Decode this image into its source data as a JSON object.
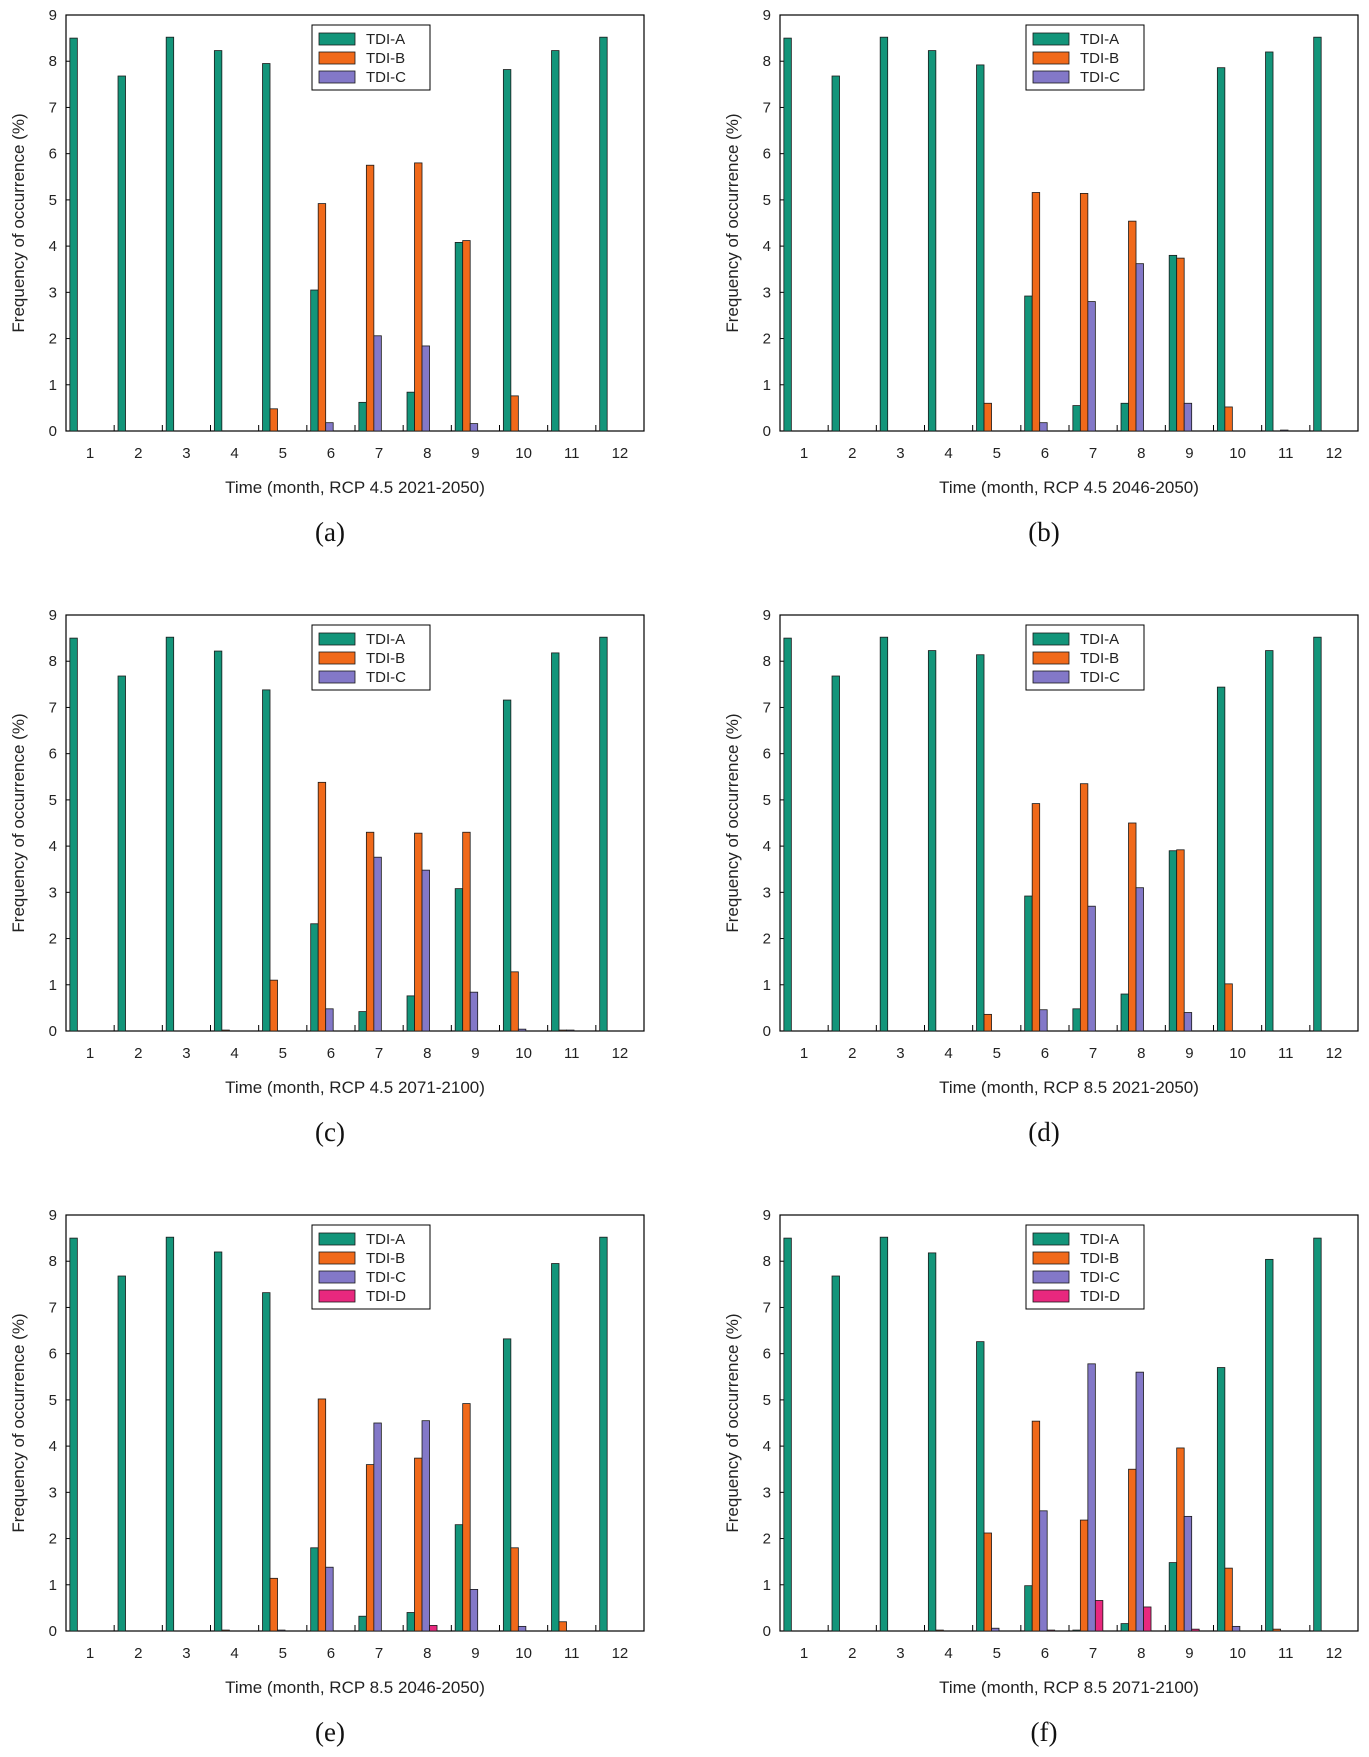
{
  "figure": {
    "series_colors": {
      "TDI-A": "#13957A",
      "TDI-B": "#F0691A",
      "TDI-C": "#8378C8",
      "TDI-D": "#E8287E"
    }
  },
  "chart_data": [
    {
      "type": "bar",
      "panel_label": "(a)",
      "xlabel": "Time (month, RCP 4.5 2021-2050)",
      "ylabel": "Frequency of occurrence (%)",
      "ylim": [
        0,
        9
      ],
      "yticks": [
        "0",
        "1",
        "2",
        "3",
        "4",
        "5",
        "6",
        "7",
        "8",
        "9"
      ],
      "categories": [
        "1",
        "2",
        "3",
        "4",
        "5",
        "6",
        "7",
        "8",
        "9",
        "10",
        "11",
        "12"
      ],
      "legend_position": "top-center",
      "series": [
        {
          "name": "TDI-A",
          "values": [
            8.5,
            7.68,
            8.52,
            8.23,
            7.95,
            3.05,
            0.62,
            0.84,
            4.08,
            7.82,
            8.23,
            8.52
          ]
        },
        {
          "name": "TDI-B",
          "values": [
            0,
            0,
            0,
            0,
            0.48,
            4.92,
            5.75,
            5.8,
            4.12,
            0.76,
            0,
            0
          ]
        },
        {
          "name": "TDI-C",
          "values": [
            0,
            0,
            0,
            0,
            0,
            0.18,
            2.06,
            1.84,
            0.16,
            0,
            0,
            0
          ]
        }
      ]
    },
    {
      "type": "bar",
      "panel_label": "(b)",
      "xlabel": "Time (month, RCP 4.5 2046-2050)",
      "ylabel": "Frequency of occurrence (%)",
      "ylim": [
        0,
        9
      ],
      "yticks": [
        "0",
        "1",
        "2",
        "3",
        "4",
        "5",
        "6",
        "7",
        "8",
        "9"
      ],
      "categories": [
        "1",
        "2",
        "3",
        "4",
        "5",
        "6",
        "7",
        "8",
        "9",
        "10",
        "11",
        "12"
      ],
      "legend_position": "top-center",
      "series": [
        {
          "name": "TDI-A",
          "values": [
            8.5,
            7.68,
            8.52,
            8.23,
            7.92,
            2.92,
            0.55,
            0.6,
            3.8,
            7.86,
            8.2,
            8.52
          ]
        },
        {
          "name": "TDI-B",
          "values": [
            0,
            0,
            0,
            0,
            0.6,
            5.16,
            5.14,
            4.54,
            3.74,
            0.52,
            0,
            0
          ]
        },
        {
          "name": "TDI-C",
          "values": [
            0,
            0,
            0,
            0,
            0,
            0.18,
            2.8,
            3.62,
            0.6,
            0,
            0.02,
            0
          ]
        }
      ]
    },
    {
      "type": "bar",
      "panel_label": "(c)",
      "xlabel": "Time (month, RCP 4.5 2071-2100)",
      "ylabel": "Frequency of occurrence (%)",
      "ylim": [
        0,
        9
      ],
      "yticks": [
        "0",
        "1",
        "2",
        "3",
        "4",
        "5",
        "6",
        "7",
        "8",
        "9"
      ],
      "categories": [
        "1",
        "2",
        "3",
        "4",
        "5",
        "6",
        "7",
        "8",
        "9",
        "10",
        "11",
        "12"
      ],
      "legend_position": "top-center",
      "series": [
        {
          "name": "TDI-A",
          "values": [
            8.5,
            7.68,
            8.52,
            8.22,
            7.38,
            2.32,
            0.42,
            0.76,
            3.08,
            7.16,
            8.18,
            8.52
          ]
        },
        {
          "name": "TDI-B",
          "values": [
            0,
            0,
            0,
            0.02,
            1.1,
            5.38,
            4.3,
            4.28,
            4.3,
            1.28,
            0.02,
            0
          ]
        },
        {
          "name": "TDI-C",
          "values": [
            0,
            0,
            0,
            0,
            0,
            0.48,
            3.76,
            3.48,
            0.84,
            0.04,
            0.02,
            0
          ]
        }
      ]
    },
    {
      "type": "bar",
      "panel_label": "(d)",
      "xlabel": "Time (month, RCP 8.5 2021-2050)",
      "ylabel": "Frequency of occurrence (%)",
      "ylim": [
        0,
        9
      ],
      "yticks": [
        "0",
        "1",
        "2",
        "3",
        "4",
        "5",
        "6",
        "7",
        "8",
        "9"
      ],
      "categories": [
        "1",
        "2",
        "3",
        "4",
        "5",
        "6",
        "7",
        "8",
        "9",
        "10",
        "11",
        "12"
      ],
      "legend_position": "top-center",
      "series": [
        {
          "name": "TDI-A",
          "values": [
            8.5,
            7.68,
            8.52,
            8.23,
            8.14,
            2.92,
            0.48,
            0.8,
            3.9,
            7.44,
            8.23,
            8.52
          ]
        },
        {
          "name": "TDI-B",
          "values": [
            0,
            0,
            0,
            0,
            0.36,
            4.92,
            5.35,
            4.5,
            3.92,
            1.02,
            0,
            0
          ]
        },
        {
          "name": "TDI-C",
          "values": [
            0,
            0,
            0,
            0,
            0,
            0.46,
            2.7,
            3.1,
            0.4,
            0,
            0,
            0
          ]
        }
      ]
    },
    {
      "type": "bar",
      "panel_label": "(e)",
      "xlabel": "Time (month, RCP 8.5 2046-2050)",
      "ylabel": "Frequency of occurrence (%)",
      "ylim": [
        0,
        9
      ],
      "yticks": [
        "0",
        "1",
        "2",
        "3",
        "4",
        "5",
        "6",
        "7",
        "8",
        "9"
      ],
      "categories": [
        "1",
        "2",
        "3",
        "4",
        "5",
        "6",
        "7",
        "8",
        "9",
        "10",
        "11",
        "12"
      ],
      "legend_position": "top-center",
      "series": [
        {
          "name": "TDI-A",
          "values": [
            8.5,
            7.68,
            8.52,
            8.2,
            7.32,
            1.8,
            0.32,
            0.4,
            2.3,
            6.32,
            7.95,
            8.52
          ]
        },
        {
          "name": "TDI-B",
          "values": [
            0,
            0,
            0,
            0.02,
            1.14,
            5.02,
            3.6,
            3.74,
            4.92,
            1.8,
            0.2,
            0
          ]
        },
        {
          "name": "TDI-C",
          "values": [
            0,
            0,
            0,
            0,
            0.02,
            1.38,
            4.5,
            4.55,
            0.9,
            0.1,
            0,
            0
          ]
        },
        {
          "name": "TDI-D",
          "values": [
            0,
            0,
            0,
            0,
            0,
            0,
            0,
            0.12,
            0,
            0,
            0,
            0
          ]
        }
      ]
    },
    {
      "type": "bar",
      "panel_label": "(f)",
      "xlabel": "Time (month, RCP 8.5 2071-2100)",
      "ylabel": "Frequency of occurrence (%)",
      "ylim": [
        0,
        9
      ],
      "yticks": [
        "0",
        "1",
        "2",
        "3",
        "4",
        "5",
        "6",
        "7",
        "8",
        "9"
      ],
      "categories": [
        "1",
        "2",
        "3",
        "4",
        "5",
        "6",
        "7",
        "8",
        "9",
        "10",
        "11",
        "12"
      ],
      "legend_position": "top-center",
      "series": [
        {
          "name": "TDI-A",
          "values": [
            8.5,
            7.68,
            8.52,
            8.18,
            6.26,
            0.98,
            0.02,
            0.16,
            1.48,
            5.7,
            8.04,
            8.5
          ]
        },
        {
          "name": "TDI-B",
          "values": [
            0,
            0,
            0,
            0.02,
            2.12,
            4.54,
            2.4,
            3.5,
            3.96,
            1.36,
            0.04,
            0
          ]
        },
        {
          "name": "TDI-C",
          "values": [
            0,
            0,
            0,
            0,
            0.06,
            2.6,
            5.78,
            5.6,
            2.48,
            0.1,
            0,
            0
          ]
        },
        {
          "name": "TDI-D",
          "values": [
            0,
            0,
            0,
            0,
            0,
            0.02,
            0.66,
            0.52,
            0.04,
            0,
            0,
            0
          ]
        }
      ]
    }
  ]
}
